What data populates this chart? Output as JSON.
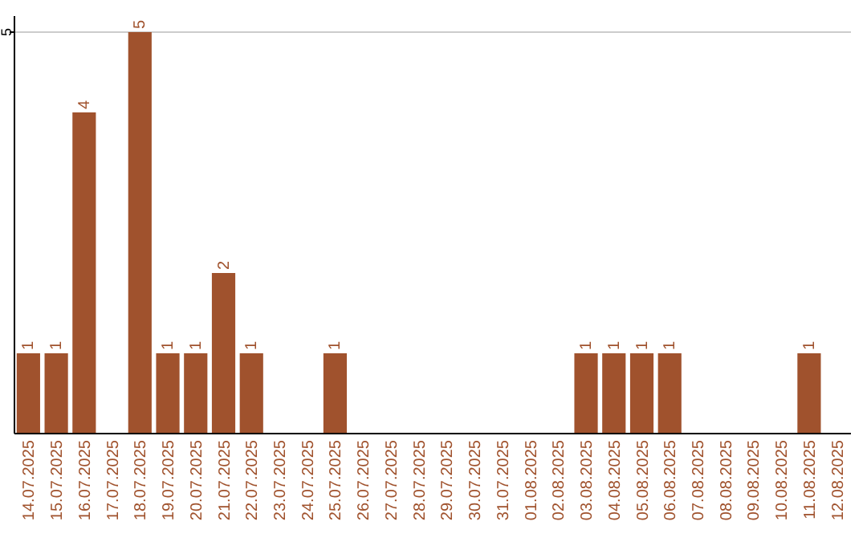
{
  "chart_data": {
    "type": "bar",
    "categories": [
      "14.07.2025",
      "15.07.2025",
      "16.07.2025",
      "17.07.2025",
      "18.07.2025",
      "19.07.2025",
      "20.07.2025",
      "21.07.2025",
      "22.07.2025",
      "23.07.2025",
      "24.07.2025",
      "25.07.2025",
      "26.07.2025",
      "27.07.2025",
      "28.07.2025",
      "29.07.2025",
      "30.07.2025",
      "31.07.2025",
      "01.08.2025",
      "02.08.2025",
      "03.08.2025",
      "04.08.2025",
      "05.08.2025",
      "06.08.2025",
      "07.08.2025",
      "08.08.2025",
      "09.08.2025",
      "10.08.2025",
      "11.08.2025",
      "12.08.2025"
    ],
    "values": [
      1,
      1,
      4,
      0,
      5,
      1,
      1,
      2,
      1,
      0,
      0,
      1,
      0,
      0,
      0,
      0,
      0,
      0,
      0,
      0,
      1,
      1,
      1,
      1,
      0,
      0,
      0,
      0,
      1,
      0
    ],
    "value_labels": [
      "1",
      "1",
      "4",
      null,
      "5",
      "1",
      "1",
      "2",
      "1",
      null,
      null,
      "1",
      null,
      null,
      null,
      null,
      null,
      null,
      null,
      null,
      "1",
      "1",
      "1",
      "1",
      null,
      null,
      null,
      null,
      "1",
      null
    ],
    "color": "#a0522d",
    "ylim": [
      0,
      5
    ],
    "yticks": [
      5
    ],
    "ref_lines": [
      {
        "axis": "y",
        "value": 5,
        "color": "#cccccc"
      }
    ]
  }
}
